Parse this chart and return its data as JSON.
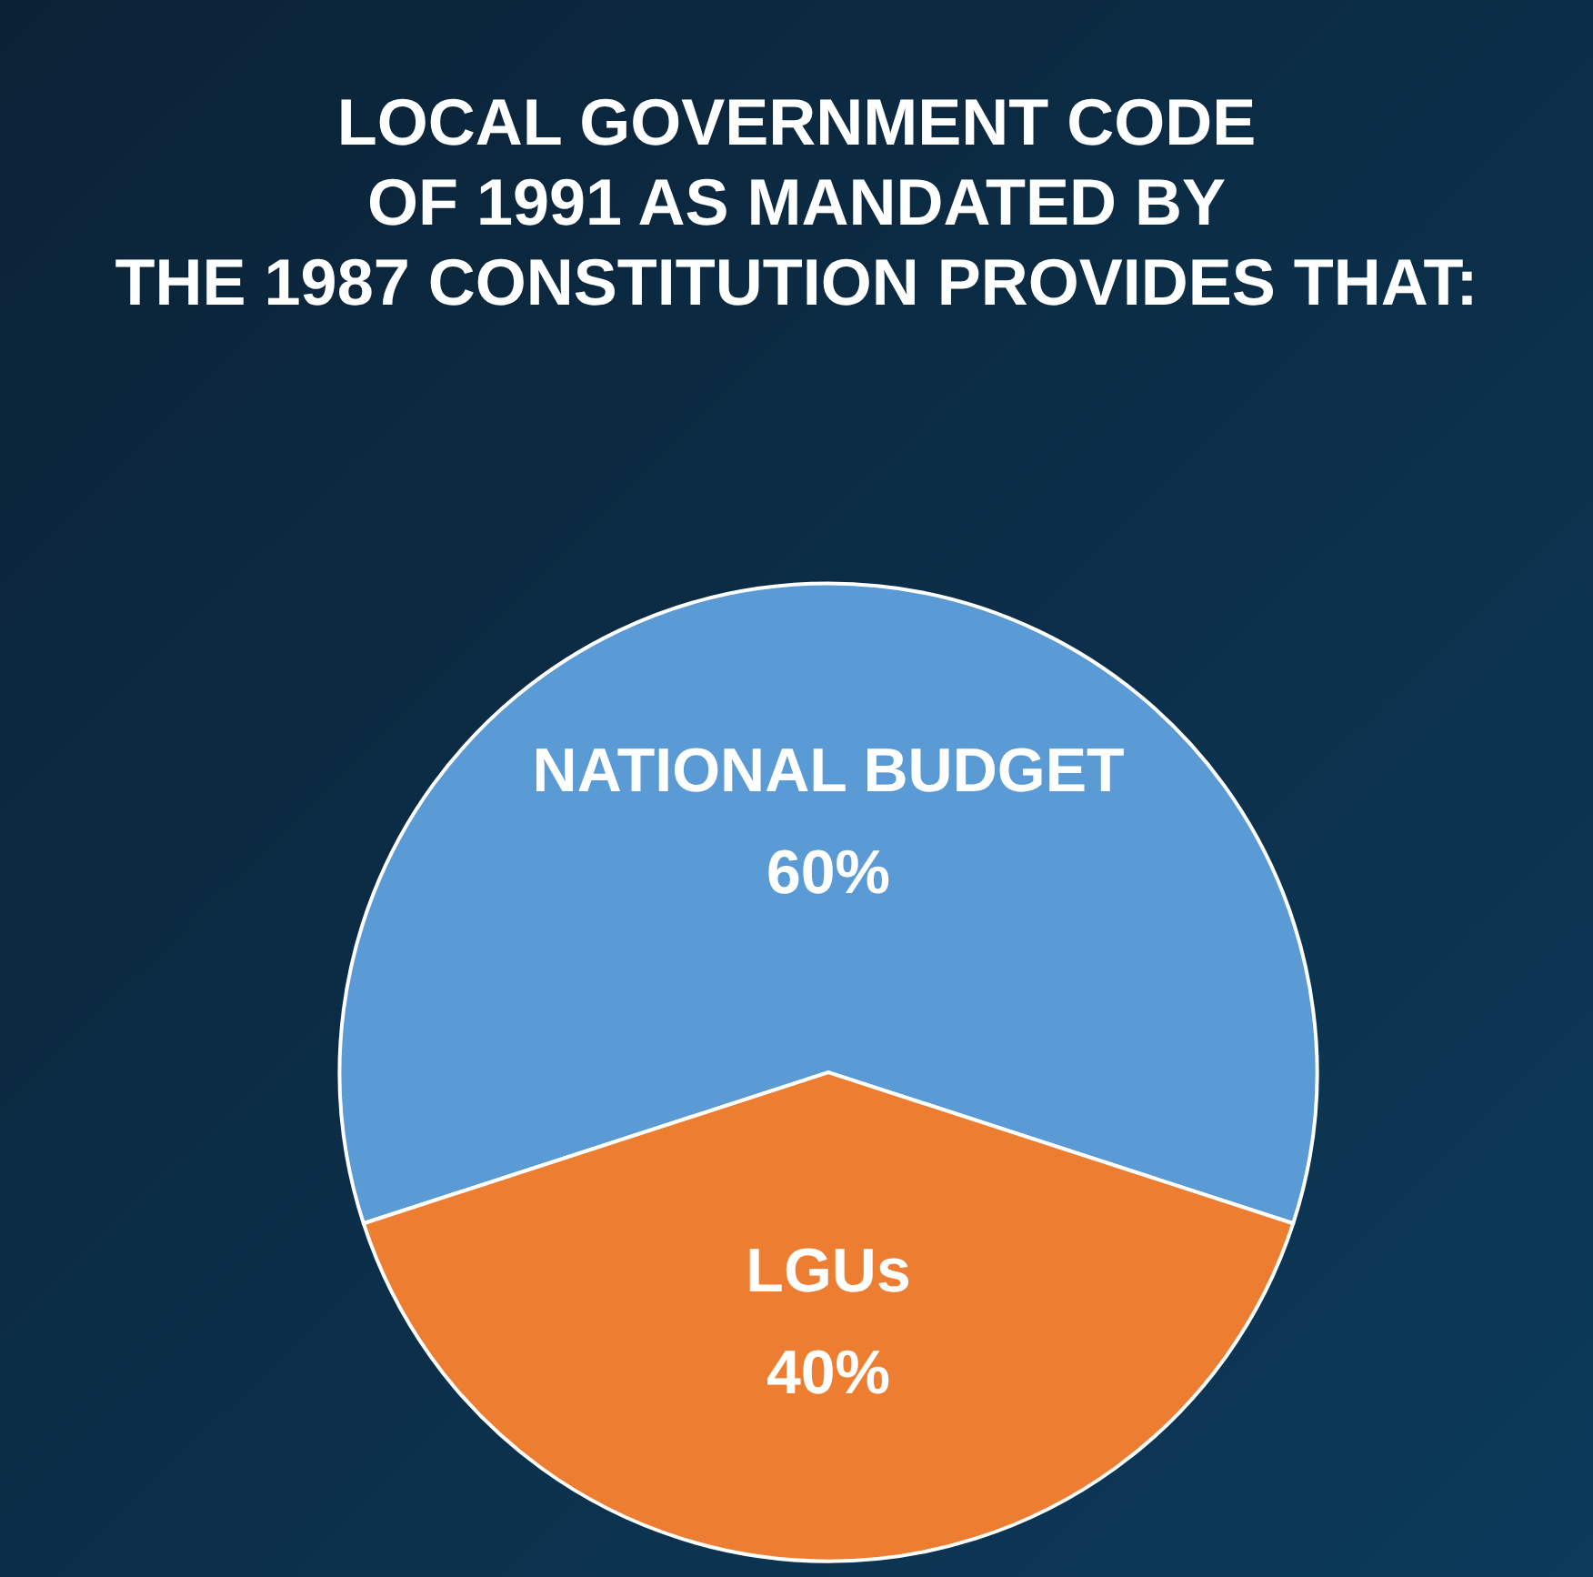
{
  "chart_data": {
    "type": "pie",
    "title": "LOCAL GOVERNMENT CODE\nOF 1991 AS MANDATED BY\nTHE 1987 CONSTITUTION PROVIDES THAT:",
    "categories": [
      "NATIONAL BUDGET",
      "LGUs"
    ],
    "values": [
      60,
      40
    ],
    "colors": [
      "#5b9bd5",
      "#ed7d31"
    ],
    "value_labels": [
      "60%",
      "40%"
    ],
    "legend": false
  }
}
